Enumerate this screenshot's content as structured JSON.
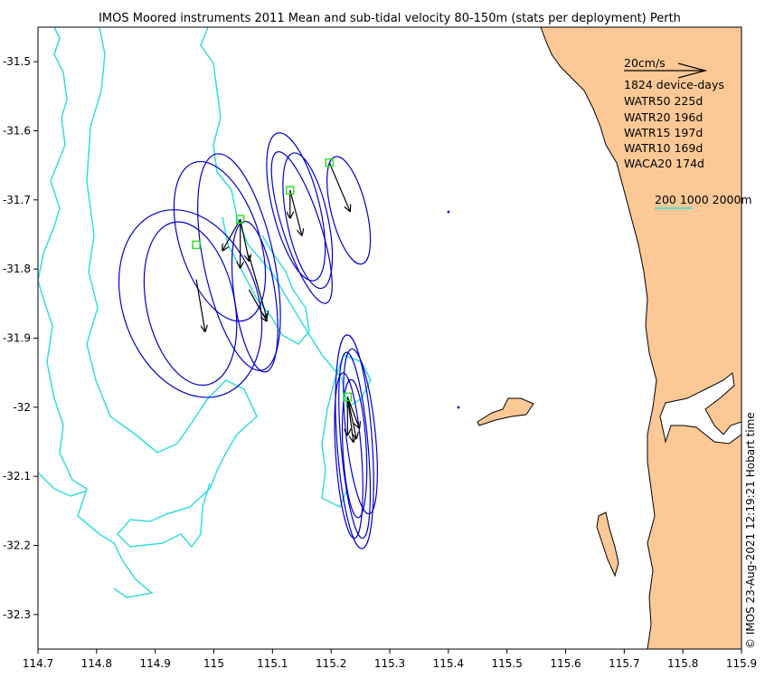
{
  "chart_data": {
    "type": "map-vector",
    "title": "IMOS Moored instruments 2011 Mean and sub-tidal velocity 80-150m (stats per deployment) Perth",
    "xlim": [
      114.7,
      115.9
    ],
    "ylim": [
      -32.35,
      -31.45
    ],
    "xticks": [
      "114.7",
      "114.8",
      "114.9",
      "115",
      "115.1",
      "115.2",
      "115.3",
      "115.4",
      "115.5",
      "115.6",
      "115.7",
      "115.8",
      "115.9"
    ],
    "yticks": [
      "-31.5",
      "-31.6",
      "-31.7",
      "-31.8",
      "-31.9",
      "-32",
      "-32.1",
      "-32.2",
      "-32.3"
    ],
    "scale_label": "20cm/s",
    "summary": "1824 device-days",
    "deployments": [
      "WATR50 225d",
      "WATR20 196d",
      "WATR15 197d",
      "WATR10 169d",
      "WACA20 174d"
    ],
    "depth_labels": "200 1000 2000m",
    "credit": "© IMOS 23-Aug-2021 12:19:21 Hobart time",
    "colors": {
      "land": "#fcc896",
      "ellipse": "#0000cc",
      "contour": "#33dddd",
      "station": "#33dd33",
      "arrow": "#000000"
    },
    "stations": [
      {
        "name": "WATR50",
        "lon": 114.97,
        "lat": -31.765
      },
      {
        "name": "WATR20",
        "lon": 115.045,
        "lat": -31.728
      },
      {
        "name": "WATR15",
        "lon": 115.13,
        "lat": -31.686
      },
      {
        "name": "WATR10",
        "lon": 115.197,
        "lat": -31.646
      },
      {
        "name": "WACA20",
        "lon": 115.228,
        "lat": -31.985
      }
    ],
    "arrows": [
      {
        "lon": 114.97,
        "lat": -31.815,
        "dlon": 0.015,
        "dlat": -0.075
      },
      {
        "lon": 115.045,
        "lat": -31.728,
        "dlon": -0.03,
        "dlat": -0.045
      },
      {
        "lon": 115.045,
        "lat": -31.728,
        "dlon": 0.0,
        "dlat": -0.07
      },
      {
        "lon": 115.045,
        "lat": -31.728,
        "dlon": 0.015,
        "dlat": -0.06
      },
      {
        "lon": 115.06,
        "lat": -31.83,
        "dlon": 0.03,
        "dlat": -0.045
      },
      {
        "lon": 115.06,
        "lat": -31.78,
        "dlon": 0.03,
        "dlat": -0.09
      },
      {
        "lon": 115.13,
        "lat": -31.686,
        "dlon": 0.0,
        "dlat": -0.04
      },
      {
        "lon": 115.13,
        "lat": -31.686,
        "dlon": 0.02,
        "dlat": -0.065
      },
      {
        "lon": 115.197,
        "lat": -31.646,
        "dlon": 0.035,
        "dlat": -0.07
      },
      {
        "lon": 115.228,
        "lat": -31.985,
        "dlon": 0.02,
        "dlat": -0.045
      },
      {
        "lon": 115.228,
        "lat": -31.985,
        "dlon": 0.015,
        "dlat": -0.06
      },
      {
        "lon": 115.228,
        "lat": -31.985,
        "dlon": 0.0,
        "dlat": -0.055
      },
      {
        "lon": 115.228,
        "lat": -31.985,
        "dlon": 0.01,
        "dlat": -0.065
      }
    ],
    "ellipses": [
      {
        "lon": 114.96,
        "lat": -31.85,
        "rlon": 0.115,
        "rlat": 0.14,
        "rot": -20
      },
      {
        "lon": 114.96,
        "lat": -31.85,
        "rlon": 0.075,
        "rlat": 0.12,
        "rot": -12
      },
      {
        "lon": 115.01,
        "lat": -31.76,
        "rlon": 0.068,
        "rlat": 0.12,
        "rot": -18
      },
      {
        "lon": 115.043,
        "lat": -31.79,
        "rlon": 0.06,
        "rlat": 0.16,
        "rot": -12
      },
      {
        "lon": 115.07,
        "lat": -31.84,
        "rlon": 0.035,
        "rlat": 0.11,
        "rot": -8
      },
      {
        "lon": 115.14,
        "lat": -31.71,
        "rlon": 0.04,
        "rlat": 0.11,
        "rot": -14
      },
      {
        "lon": 115.15,
        "lat": -31.74,
        "rlon": 0.032,
        "rlat": 0.115,
        "rot": -18
      },
      {
        "lon": 115.16,
        "lat": -31.73,
        "rlon": 0.035,
        "rlat": 0.1,
        "rot": -12
      },
      {
        "lon": 115.23,
        "lat": -31.715,
        "rlon": 0.03,
        "rlat": 0.08,
        "rot": -14
      },
      {
        "lon": 115.24,
        "lat": -32.05,
        "rlon": 0.03,
        "rlat": 0.155,
        "rot": -4
      },
      {
        "lon": 115.25,
        "lat": -32.035,
        "rlon": 0.025,
        "rlat": 0.12,
        "rot": -6
      },
      {
        "lon": 115.24,
        "lat": -32.06,
        "rlon": 0.02,
        "rlat": 0.1,
        "rot": -3
      },
      {
        "lon": 115.24,
        "lat": -32.055,
        "rlon": 0.023,
        "rlat": 0.135,
        "rot": -5
      },
      {
        "lon": 115.23,
        "lat": -32.07,
        "rlon": 0.022,
        "rlat": 0.12,
        "rot": -4
      }
    ]
  }
}
